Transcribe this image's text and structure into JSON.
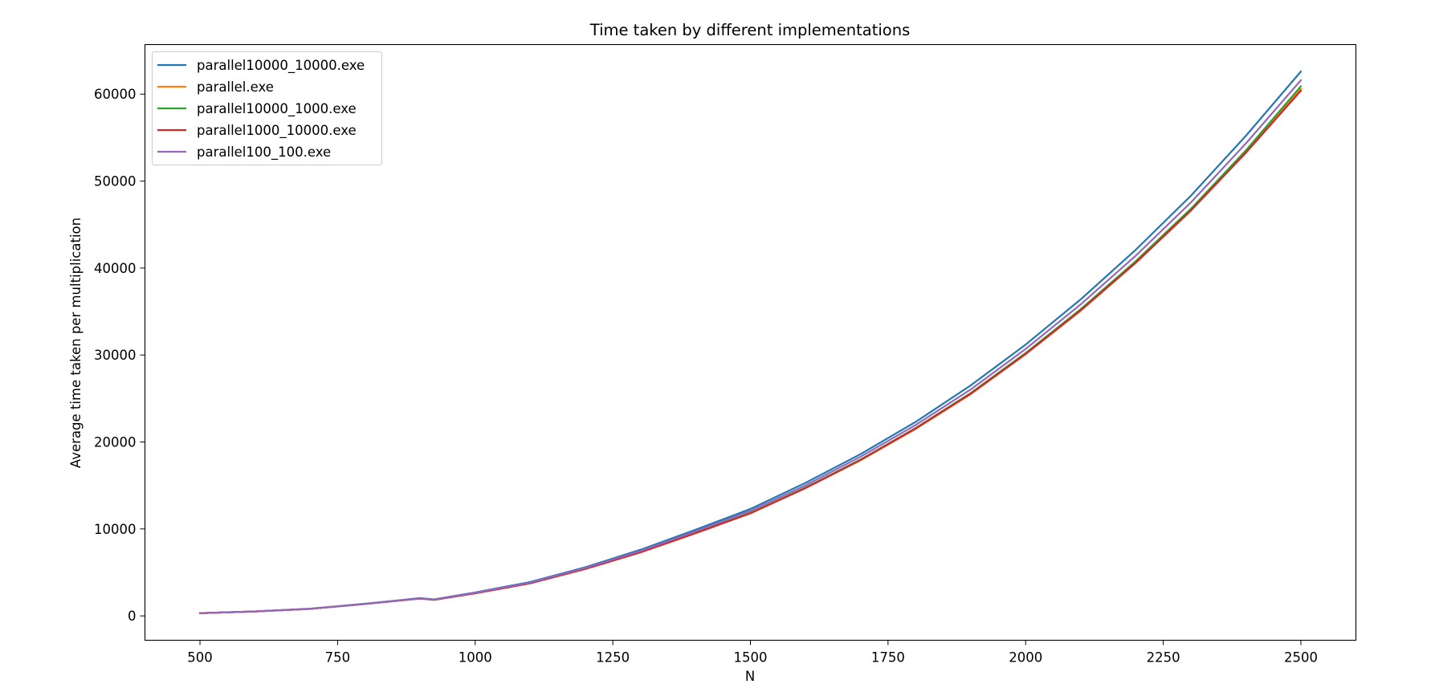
{
  "chart_data": {
    "type": "line",
    "title": "Time taken by different implementations",
    "xlabel": "N",
    "ylabel": "Average time taken per multiplication",
    "xlim": [
      400,
      2600
    ],
    "ylim": [
      -2800,
      65700
    ],
    "xticks": [
      500,
      750,
      1000,
      1250,
      1500,
      1750,
      2000,
      2250,
      2500
    ],
    "yticks": [
      0,
      10000,
      20000,
      30000,
      40000,
      50000,
      60000
    ],
    "grid": false,
    "legend_position": "top-left",
    "x": [
      500,
      600,
      700,
      800,
      900,
      925,
      1000,
      1100,
      1200,
      1300,
      1400,
      1500,
      1600,
      1700,
      1800,
      1900,
      2000,
      2100,
      2200,
      2300,
      2400,
      2500
    ],
    "series": [
      {
        "name": "parallel10000_10000.exe",
        "color": "#1f77b4",
        "values": [
          320,
          520,
          830,
          1400,
          2050,
          1900,
          2700,
          3900,
          5600,
          7600,
          9900,
          12300,
          15300,
          18600,
          22300,
          26500,
          31200,
          36400,
          42100,
          48300,
          55200,
          62600
        ]
      },
      {
        "name": "parallel.exe",
        "color": "#ff7f0e",
        "values": [
          310,
          510,
          810,
          1370,
          2000,
          1850,
          2600,
          3750,
          5400,
          7300,
          9500,
          11800,
          14700,
          17900,
          21500,
          25500,
          30100,
          35100,
          40600,
          46600,
          53300,
          60600
        ]
      },
      {
        "name": "parallel10000_1000.exe",
        "color": "#2ca02c",
        "values": [
          310,
          510,
          810,
          1370,
          2000,
          1850,
          2610,
          3760,
          5420,
          7330,
          9540,
          11850,
          14760,
          17980,
          21600,
          25620,
          30230,
          35270,
          40790,
          46800,
          53520,
          60900
        ]
      },
      {
        "name": "parallel1000_10000.exe",
        "color": "#d62728",
        "values": [
          310,
          510,
          810,
          1370,
          2000,
          1850,
          2600,
          3750,
          5400,
          7300,
          9500,
          11800,
          14700,
          17920,
          21550,
          25540,
          30120,
          35130,
          40620,
          46600,
          53250,
          60400
        ]
      },
      {
        "name": "parallel100_100.exe",
        "color": "#9467bd",
        "values": [
          315,
          515,
          820,
          1385,
          2030,
          1880,
          2660,
          3830,
          5510,
          7460,
          9720,
          12080,
          15020,
          18300,
          21950,
          26030,
          30700,
          35820,
          41420,
          47530,
          54320,
          61600
        ]
      }
    ]
  }
}
